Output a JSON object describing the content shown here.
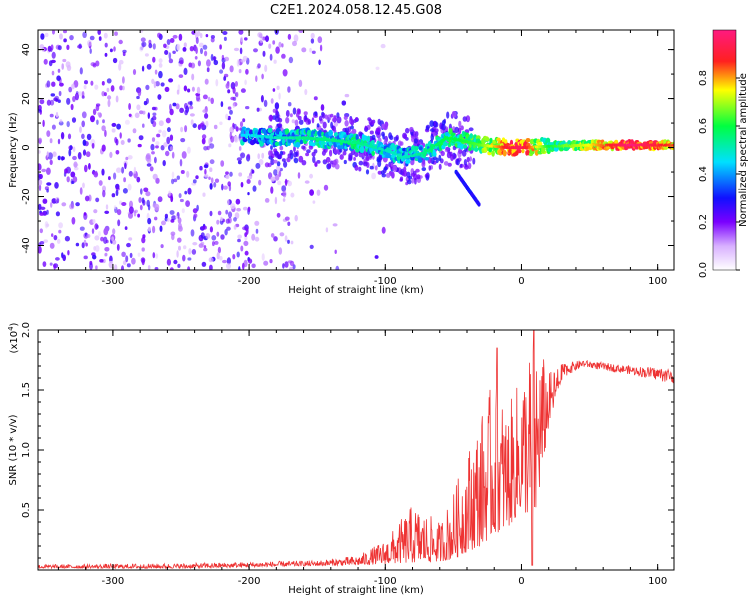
{
  "title": "C2E1.2024.058.12.45.G08",
  "chart_data": [
    {
      "type": "heatmap",
      "xlabel": "Height of straight line (km)",
      "ylabel": "Frequency (Hz)",
      "xlim": [
        -355,
        112
      ],
      "ylim": [
        -50,
        48
      ],
      "xticks": [
        -300,
        -200,
        -100,
        0,
        100
      ],
      "yticks": [
        -40,
        -20,
        0,
        20,
        40
      ],
      "colorbar": {
        "label": "Normalized spectral amplitude",
        "range": [
          0,
          1
        ],
        "ticks": [
          "0.0",
          "0.2",
          "0.4",
          "0.6",
          "0.8"
        ],
        "tick_values": [
          0,
          0.2,
          0.4,
          0.6,
          0.8
        ]
      },
      "ridge": [
        {
          "x": -200,
          "y": 5,
          "amp": 0.4
        },
        {
          "x": -180,
          "y": 4,
          "amp": 0.45
        },
        {
          "x": -160,
          "y": 4,
          "amp": 0.5
        },
        {
          "x": -140,
          "y": 3,
          "amp": 0.5
        },
        {
          "x": -120,
          "y": 2,
          "amp": 0.5
        },
        {
          "x": -100,
          "y": -1,
          "amp": 0.45
        },
        {
          "x": -85,
          "y": -4,
          "amp": 0.45
        },
        {
          "x": -70,
          "y": -2,
          "amp": 0.5
        },
        {
          "x": -55,
          "y": 4,
          "amp": 0.55
        },
        {
          "x": -45,
          "y": 3,
          "amp": 0.55
        },
        {
          "x": -30,
          "y": 1,
          "amp": 0.6
        },
        {
          "x": -10,
          "y": 0,
          "amp": 0.85
        },
        {
          "x": 0,
          "y": 0,
          "amp": 0.9
        },
        {
          "x": 20,
          "y": 0.5,
          "amp": 0.55
        },
        {
          "x": 50,
          "y": 1,
          "amp": 0.7
        },
        {
          "x": 80,
          "y": 1,
          "amp": 0.95
        },
        {
          "x": 110,
          "y": 1,
          "amp": 0.8
        }
      ]
    },
    {
      "type": "line",
      "xlabel": "Height of straight line (km)",
      "ylabel": "SNR (10 * v/v)",
      "scale_label": "(x10",
      "scale_exp": "4",
      "xlim": [
        -355,
        112
      ],
      "ylim": [
        0,
        20000
      ],
      "xticks": [
        -300,
        -200,
        -100,
        0,
        100
      ],
      "ytick_values": [
        5000,
        10000,
        15000,
        20000
      ],
      "ytick_labels": [
        "0.5",
        "1.0",
        "1.5",
        "2.0"
      ],
      "color": "#ee3333",
      "envelope": [
        {
          "x": -355,
          "lo": 150,
          "hi": 450
        },
        {
          "x": -250,
          "lo": 150,
          "hi": 550
        },
        {
          "x": -150,
          "lo": 350,
          "hi": 800
        },
        {
          "x": -120,
          "lo": 400,
          "hi": 1200
        },
        {
          "x": -100,
          "lo": 500,
          "hi": 2500
        },
        {
          "x": -80,
          "lo": 600,
          "hi": 5500
        },
        {
          "x": -60,
          "lo": 700,
          "hi": 4000
        },
        {
          "x": -50,
          "lo": 900,
          "hi": 6500
        },
        {
          "x": -40,
          "lo": 1500,
          "hi": 10000
        },
        {
          "x": -30,
          "lo": 2000,
          "hi": 13000
        },
        {
          "x": -20,
          "lo": 3000,
          "hi": 16000
        },
        {
          "x": -10,
          "lo": 3500,
          "hi": 13500
        },
        {
          "x": 0,
          "lo": 5000,
          "hi": 16500
        },
        {
          "x": 10,
          "lo": 4000,
          "hi": 20000
        },
        {
          "x": 20,
          "lo": 12000,
          "hi": 16500
        },
        {
          "x": 30,
          "lo": 16000,
          "hi": 17200
        },
        {
          "x": 45,
          "lo": 16900,
          "hi": 17500
        },
        {
          "x": 80,
          "lo": 16300,
          "hi": 17000
        },
        {
          "x": 112,
          "lo": 15500,
          "hi": 16800
        }
      ]
    }
  ]
}
